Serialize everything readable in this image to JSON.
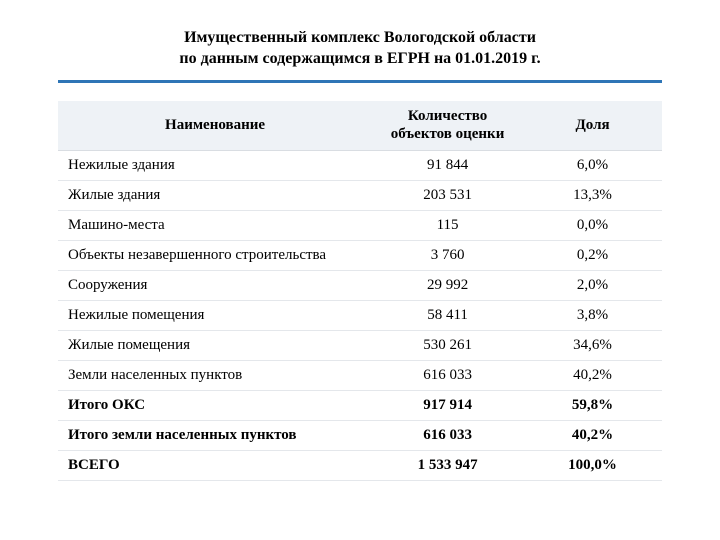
{
  "title_line1": "Имущественный комплекс Вологодской области",
  "title_line2": "по данным содержащимся в ЕГРН на 01.01.2019 г.",
  "accent_color": "#2e75b6",
  "table": {
    "columns": [
      {
        "key": "name",
        "label": "Наименование",
        "width_pct": 52,
        "align": "left"
      },
      {
        "key": "count",
        "label": "Количество объектов оценки",
        "width_pct": 25,
        "align": "center"
      },
      {
        "key": "share",
        "label": "Доля",
        "width_pct": 23,
        "align": "center"
      }
    ],
    "rows": [
      {
        "name": "Нежилые здания",
        "count": "91 844",
        "share": "6,0%",
        "bold": false
      },
      {
        "name": "Жилые здания",
        "count": "203 531",
        "share": "13,3%",
        "bold": false
      },
      {
        "name": "Машино-места",
        "count": "115",
        "share": "0,0%",
        "bold": false
      },
      {
        "name": "Объекты незавершенного строительства",
        "count": "3 760",
        "share": "0,2%",
        "bold": false
      },
      {
        "name": "Сооружения",
        "count": "29 992",
        "share": "2,0%",
        "bold": false
      },
      {
        "name": "Нежилые помещения",
        "count": "58 411",
        "share": "3,8%",
        "bold": false
      },
      {
        "name": "Жилые помещения",
        "count": "530 261",
        "share": "34,6%",
        "bold": false
      },
      {
        "name": "Земли населенных пунктов",
        "count": "616 033",
        "share": "40,2%",
        "bold": false
      },
      {
        "name": "Итого ОКС",
        "count": "917 914",
        "share": "59,8%",
        "bold": true
      },
      {
        "name": "Итого земли населенных пунктов",
        "count": "616 033",
        "share": "40,2%",
        "bold": true
      },
      {
        "name": "ВСЕГО",
        "count": "1 533 947",
        "share": "100,0%",
        "bold": true
      }
    ],
    "header_bg": "#eef2f6",
    "row_border": "#e4e7eb",
    "font_size_pt": 15
  }
}
